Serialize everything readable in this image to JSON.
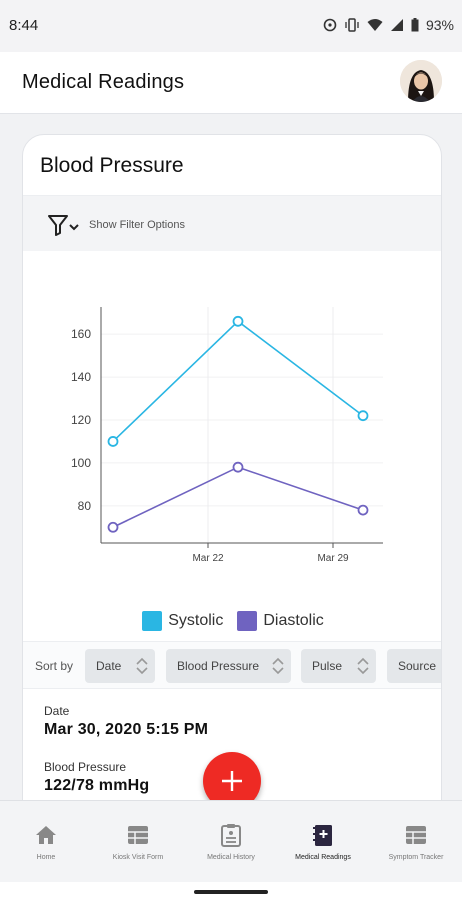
{
  "status_bar": {
    "time": "8:44",
    "battery": "93%"
  },
  "header": {
    "title": "Medical Readings"
  },
  "card": {
    "title": "Blood Pressure",
    "filter_label": "Show Filter Options"
  },
  "chart_data": {
    "type": "line",
    "x": [
      "Mar 16",
      "Mar 23",
      "Mar 30"
    ],
    "x_ticks": [
      "Mar 22",
      "Mar 29"
    ],
    "y_ticks": [
      80,
      100,
      120,
      140,
      160
    ],
    "ylim": [
      65,
      175
    ],
    "series": [
      {
        "name": "Systolic",
        "values": [
          110,
          166,
          122
        ],
        "color": "#2ab6e3"
      },
      {
        "name": "Diastolic",
        "values": [
          70,
          98,
          78
        ],
        "color": "#6f63c0"
      }
    ],
    "legend_position": "bottom-center",
    "grid": true
  },
  "sort": {
    "label": "Sort by",
    "options": [
      "Date",
      "Blood Pressure",
      "Pulse",
      "Source"
    ]
  },
  "reading": {
    "date_label": "Date",
    "date_value": "Mar 30, 2020 5:15 PM",
    "bp_label": "Blood Pressure",
    "bp_value": "122/78 mmHg"
  },
  "nav": [
    {
      "label": "Home",
      "icon": "home-icon"
    },
    {
      "label": "Kiosk Visit Form",
      "icon": "form-icon"
    },
    {
      "label": "Medical History",
      "icon": "clipboard-icon"
    },
    {
      "label": "Medical Readings",
      "icon": "medical-book-icon"
    },
    {
      "label": "Symptom Tracker",
      "icon": "table-icon"
    }
  ],
  "colors": {
    "accent": "#ee2a24",
    "systolic": "#2ab6e3",
    "diastolic": "#6f63c0"
  }
}
